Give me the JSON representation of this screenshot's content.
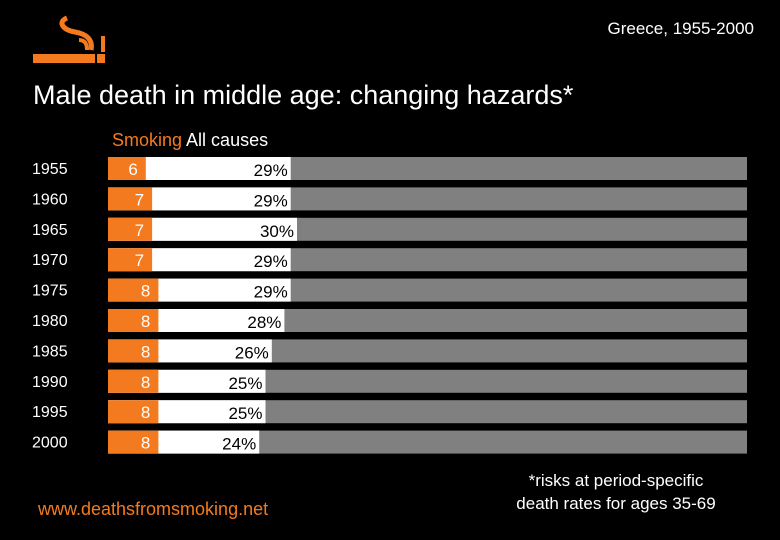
{
  "header": {
    "region": "Greece, 1955-2000",
    "title": "Male death in middle age: changing hazards*"
  },
  "colors": {
    "smoking": "#f47a1f",
    "all_causes": "#ffffff",
    "track": "#808080",
    "background": "#000000"
  },
  "icons": {
    "logo": "cigarette-smoke-icon"
  },
  "chart_data": {
    "type": "bar",
    "orientation": "horizontal",
    "stacked_overlay": true,
    "categories": [
      "1955",
      "1960",
      "1965",
      "1970",
      "1975",
      "1980",
      "1985",
      "1990",
      "1995",
      "2000"
    ],
    "series": [
      {
        "name": "Smoking",
        "values": [
          6,
          7,
          7,
          7,
          8,
          8,
          8,
          8,
          8,
          8
        ]
      },
      {
        "name": "All causes",
        "values": [
          29,
          29,
          30,
          29,
          29,
          28,
          26,
          25,
          25,
          24
        ]
      }
    ],
    "all_causes_labels": [
      "29%",
      "29%",
      "30%",
      "29%",
      "29%",
      "28%",
      "26%",
      "25%",
      "25%",
      "24%"
    ],
    "xlim": [
      0,
      100
    ],
    "legend": "top-left",
    "grid": false
  },
  "footer": {
    "url": "www.deathsfromsmoking.net",
    "note_line1": "*risks at period-specific",
    "note_line2": "death rates for ages 35-69"
  }
}
